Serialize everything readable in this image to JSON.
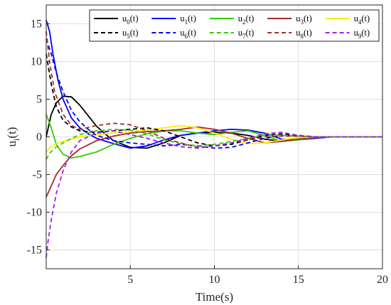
{
  "chart_data": {
    "type": "line",
    "title": "",
    "xlabel": "Time(s)",
    "ylabel": "u_i(t)",
    "xlim": [
      0,
      20
    ],
    "ylim": [
      -17.5,
      17.5
    ],
    "x_ticks": [
      5,
      10,
      15,
      20
    ],
    "y_ticks": [
      -15,
      -10,
      -5,
      0,
      5,
      10,
      15
    ],
    "x_tick_labels": [
      "5",
      "10",
      "15",
      "20"
    ],
    "y_tick_labels": [
      "-15",
      "-10",
      "-5",
      "0",
      "5",
      "10",
      "15"
    ],
    "grid": true,
    "legend_position": "top-right",
    "series": [
      {
        "name": "u_0(t)",
        "label_main": "u",
        "label_sub": "0",
        "label_tail": "(t)",
        "color": "#000000",
        "dash": "solid",
        "x": [
          0,
          0.3,
          0.6,
          1,
          1.5,
          2,
          2.5,
          3,
          3.5,
          4,
          5,
          6,
          7,
          8,
          9,
          10,
          11,
          12,
          13,
          14,
          15,
          16,
          17,
          18,
          19,
          20
        ],
        "y": [
          0,
          3.0,
          4.5,
          5.4,
          5.3,
          4.2,
          2.8,
          1.4,
          0.4,
          -0.5,
          -1.4,
          -1.5,
          -0.8,
          0.2,
          0.5,
          0.6,
          0.5,
          0.2,
          -0.3,
          -0.6,
          -0.3,
          -0.1,
          0,
          0,
          0,
          0
        ]
      },
      {
        "name": "u_1(t)",
        "label_main": "u",
        "label_sub": "1",
        "label_tail": "(t)",
        "color": "#0000FF",
        "dash": "solid",
        "x": [
          0,
          0.2,
          0.4,
          0.7,
          1,
          1.5,
          2,
          2.5,
          3,
          4,
          5,
          6,
          7,
          8,
          9,
          10,
          11,
          12,
          13,
          14,
          15,
          16,
          17,
          18,
          19,
          20
        ],
        "y": [
          15.5,
          14.0,
          11.0,
          7.5,
          5.0,
          2.5,
          1.2,
          0.4,
          -0.2,
          -0.9,
          -1.5,
          -1.2,
          -0.4,
          0.2,
          0.5,
          0.8,
          1.0,
          0.9,
          0.5,
          -0.3,
          -0.4,
          -0.2,
          0,
          0,
          0,
          0
        ]
      },
      {
        "name": "u_2(t)",
        "label_main": "u",
        "label_sub": "2",
        "label_tail": "(t)",
        "color": "#33CC00",
        "dash": "solid",
        "x": [
          0,
          0.3,
          0.6,
          1,
          1.5,
          2,
          3,
          4,
          5,
          6,
          7,
          8,
          9,
          10,
          11,
          12,
          13,
          14,
          15,
          16,
          17,
          18,
          19,
          20
        ],
        "y": [
          3.0,
          1.2,
          -1.0,
          -2.3,
          -2.8,
          -2.6,
          -2.0,
          -1.0,
          -0.2,
          0.4,
          0.8,
          0.8,
          0.5,
          0.3,
          0.6,
          0.8,
          0.2,
          -0.6,
          -0.4,
          -0.1,
          0,
          0,
          0,
          0
        ]
      },
      {
        "name": "u_3(t)",
        "label_main": "u",
        "label_sub": "3",
        "label_tail": "(t)",
        "color": "#A52A2A",
        "dash": "solid",
        "x": [
          0,
          0.1,
          0.3,
          0.6,
          1,
          1.5,
          2,
          3,
          4,
          5,
          6,
          7,
          8,
          9,
          10,
          11,
          12,
          13,
          14,
          15,
          16,
          17,
          18,
          19,
          20
        ],
        "y": [
          -8.0,
          -7.5,
          -6.5,
          -5.0,
          -3.8,
          -2.5,
          -1.6,
          -0.5,
          0.1,
          0.5,
          0.7,
          0.8,
          1.0,
          1.3,
          1.0,
          0.5,
          -0.2,
          -0.8,
          -0.6,
          -0.3,
          -0.1,
          0,
          0,
          0,
          0
        ]
      },
      {
        "name": "u_4(t)",
        "label_main": "u",
        "label_sub": "4",
        "label_tail": "(t)",
        "color": "#FFEE00",
        "dash": "solid",
        "x": [
          0,
          0.2,
          0.5,
          1,
          1.5,
          2,
          3,
          4,
          5,
          6,
          7,
          8,
          9,
          10,
          11,
          12,
          13,
          14,
          15,
          16,
          17,
          18,
          19,
          20
        ],
        "y": [
          -2.0,
          -1.5,
          -1.0,
          -0.6,
          -0.3,
          0,
          0.3,
          0.5,
          0.7,
          0.9,
          1.2,
          1.5,
          1.2,
          0.5,
          -0.3,
          -0.9,
          -0.8,
          -0.4,
          -0.1,
          0,
          0,
          0,
          0,
          0
        ]
      },
      {
        "name": "u_5(t)",
        "label_main": "u",
        "label_sub": "5",
        "label_tail": "(t)",
        "color": "#000000",
        "dash": "dashed",
        "x": [
          0,
          0.3,
          0.6,
          1,
          1.5,
          2,
          3,
          4,
          5,
          6,
          7,
          8,
          9,
          10,
          11,
          12,
          13,
          14,
          15,
          16,
          17,
          18,
          19,
          20
        ],
        "y": [
          11.0,
          7.0,
          4.0,
          2.2,
          1.3,
          0.8,
          0.6,
          0.8,
          1.0,
          1.2,
          0.8,
          0,
          -0.8,
          -1.2,
          -1.0,
          -0.4,
          0.2,
          0.4,
          0.2,
          0,
          0,
          0,
          0,
          0
        ]
      },
      {
        "name": "u_6(t)",
        "label_main": "u",
        "label_sub": "6",
        "label_tail": "(t)",
        "color": "#0000FF",
        "dash": "dashed",
        "x": [
          0,
          0.3,
          0.6,
          1,
          1.5,
          2,
          2.5,
          3,
          4,
          5,
          6,
          7,
          8,
          9,
          10,
          11,
          12,
          13,
          14,
          15,
          16,
          17,
          18,
          19,
          20
        ],
        "y": [
          13.0,
          11.0,
          8.5,
          6.0,
          3.5,
          2.0,
          1.0,
          0.2,
          -0.5,
          -0.8,
          -1.0,
          -1.2,
          -1.0,
          -1.2,
          -1.5,
          -1.4,
          -0.8,
          -0.2,
          0.2,
          0.1,
          0,
          0,
          0,
          0,
          0
        ]
      },
      {
        "name": "u_7(t)",
        "label_main": "u",
        "label_sub": "7",
        "label_tail": "(t)",
        "color": "#33CC00",
        "dash": "dashed",
        "x": [
          0,
          0.2,
          0.5,
          1,
          1.5,
          2,
          3,
          4,
          5,
          6,
          7,
          8,
          9,
          10,
          11,
          12,
          13,
          14,
          15,
          16,
          17,
          18,
          19,
          20
        ],
        "y": [
          -3.0,
          -2.2,
          -1.5,
          -0.8,
          -0.2,
          0.3,
          0.8,
          1.0,
          0.9,
          0.4,
          -0.4,
          -0.9,
          -1.2,
          -1.0,
          -0.6,
          -0.2,
          0.2,
          0.2,
          0.1,
          0,
          0,
          0,
          0,
          0
        ]
      },
      {
        "name": "u_8(t)",
        "label_main": "u",
        "label_sub": "8",
        "label_tail": "(t)",
        "color": "#A52A2A",
        "dash": "dashed",
        "x": [
          0,
          0.2,
          0.5,
          1,
          1.5,
          2,
          3,
          4,
          5,
          6,
          7,
          8,
          9,
          10,
          11,
          12,
          13,
          14,
          15,
          16,
          17,
          18,
          19,
          20
        ],
        "y": [
          14.0,
          10.0,
          6.0,
          3.0,
          1.5,
          1.0,
          1.5,
          1.8,
          1.6,
          0.8,
          -0.2,
          -0.8,
          -1.4,
          -1.2,
          -0.8,
          -0.4,
          0,
          0.1,
          0.1,
          0,
          0,
          0,
          0,
          0
        ]
      },
      {
        "name": "u_9(t)",
        "label_main": "u",
        "label_sub": "9",
        "label_tail": "(t)",
        "color": "#A020F0",
        "dash": "dashed",
        "x": [
          0,
          0.1,
          0.3,
          0.6,
          1,
          1.5,
          2,
          3,
          4,
          5,
          6,
          7,
          8,
          9,
          10,
          11,
          12,
          13,
          14,
          15,
          16,
          17,
          18,
          19,
          20
        ],
        "y": [
          -16.0,
          -14.0,
          -11.0,
          -7.5,
          -4.5,
          -2.0,
          -0.5,
          0.5,
          0.8,
          0.3,
          -0.2,
          -0.8,
          -1.3,
          -1.5,
          -1.2,
          -0.8,
          -0.2,
          0.4,
          0.6,
          0.2,
          0,
          0,
          0,
          0,
          0
        ]
      }
    ]
  }
}
